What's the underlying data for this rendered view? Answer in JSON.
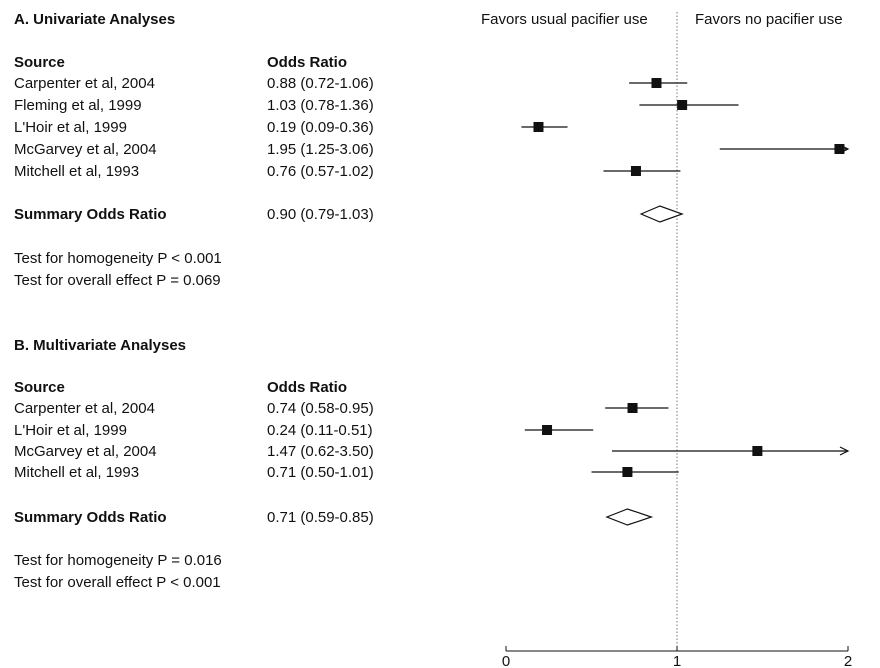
{
  "favors_left": "Favors usual pacifier use",
  "favors_right": "Favors no pacifier use",
  "chart_data": [
    {
      "type": "forest",
      "title": "A. Univariate Analyses",
      "col_source": "Source",
      "col_or": "Odds Ratio",
      "studies": [
        {
          "name": "Carpenter et al, 2004",
          "label": "0.88 (0.72-1.06)",
          "or": 0.88,
          "lo": 0.72,
          "hi": 1.06,
          "arrow": false
        },
        {
          "name": "Fleming et al, 1999",
          "label": "1.03 (0.78-1.36)",
          "or": 1.03,
          "lo": 0.78,
          "hi": 1.36,
          "arrow": false
        },
        {
          "name": "L'Hoir et al, 1999",
          "label": "0.19 (0.09-0.36)",
          "or": 0.19,
          "lo": 0.09,
          "hi": 0.36,
          "arrow": false
        },
        {
          "name": "McGarvey et al, 2004",
          "label": "1.95 (1.25-3.06)",
          "or": 1.95,
          "lo": 1.25,
          "hi": 3.06,
          "arrow": true
        },
        {
          "name": "Mitchell et al, 1993",
          "label": "0.76 (0.57-1.02)",
          "or": 0.76,
          "lo": 0.57,
          "hi": 1.02,
          "arrow": false
        }
      ],
      "summary": {
        "name": "Summary Odds Ratio",
        "label": "0.90 (0.79-1.03)",
        "or": 0.9,
        "lo": 0.79,
        "hi": 1.03
      },
      "tests": [
        "Test for homogeneity P < 0.001",
        "Test for overall effect P = 0.069"
      ]
    },
    {
      "type": "forest",
      "title": "B. Multivariate Analyses",
      "col_source": "Source",
      "col_or": "Odds Ratio",
      "studies": [
        {
          "name": "Carpenter et al, 2004",
          "label": "0.74 (0.58-0.95)",
          "or": 0.74,
          "lo": 0.58,
          "hi": 0.95,
          "arrow": false
        },
        {
          "name": "L'Hoir et al, 1999",
          "label": "0.24 (0.11-0.51)",
          "or": 0.24,
          "lo": 0.11,
          "hi": 0.51,
          "arrow": false
        },
        {
          "name": "McGarvey et al, 2004",
          "label": "1.47 (0.62-3.50)",
          "or": 1.47,
          "lo": 0.62,
          "hi": 3.5,
          "arrow": true
        },
        {
          "name": "Mitchell et al, 1993",
          "label": "0.71 (0.50-1.01)",
          "or": 0.71,
          "lo": 0.5,
          "hi": 1.01,
          "arrow": false
        }
      ],
      "summary": {
        "name": "Summary Odds Ratio",
        "label": "0.71 (0.59-0.85)",
        "or": 0.71,
        "lo": 0.59,
        "hi": 0.85
      },
      "tests": [
        "Test for homogeneity P = 0.016",
        "Test for overall effect P < 0.001"
      ]
    }
  ],
  "x_axis": {
    "ticks": [
      0,
      1,
      2
    ],
    "tick_labels": [
      "0",
      "1",
      "2"
    ],
    "xlim": [
      0,
      2
    ],
    "reference_line": 1
  }
}
